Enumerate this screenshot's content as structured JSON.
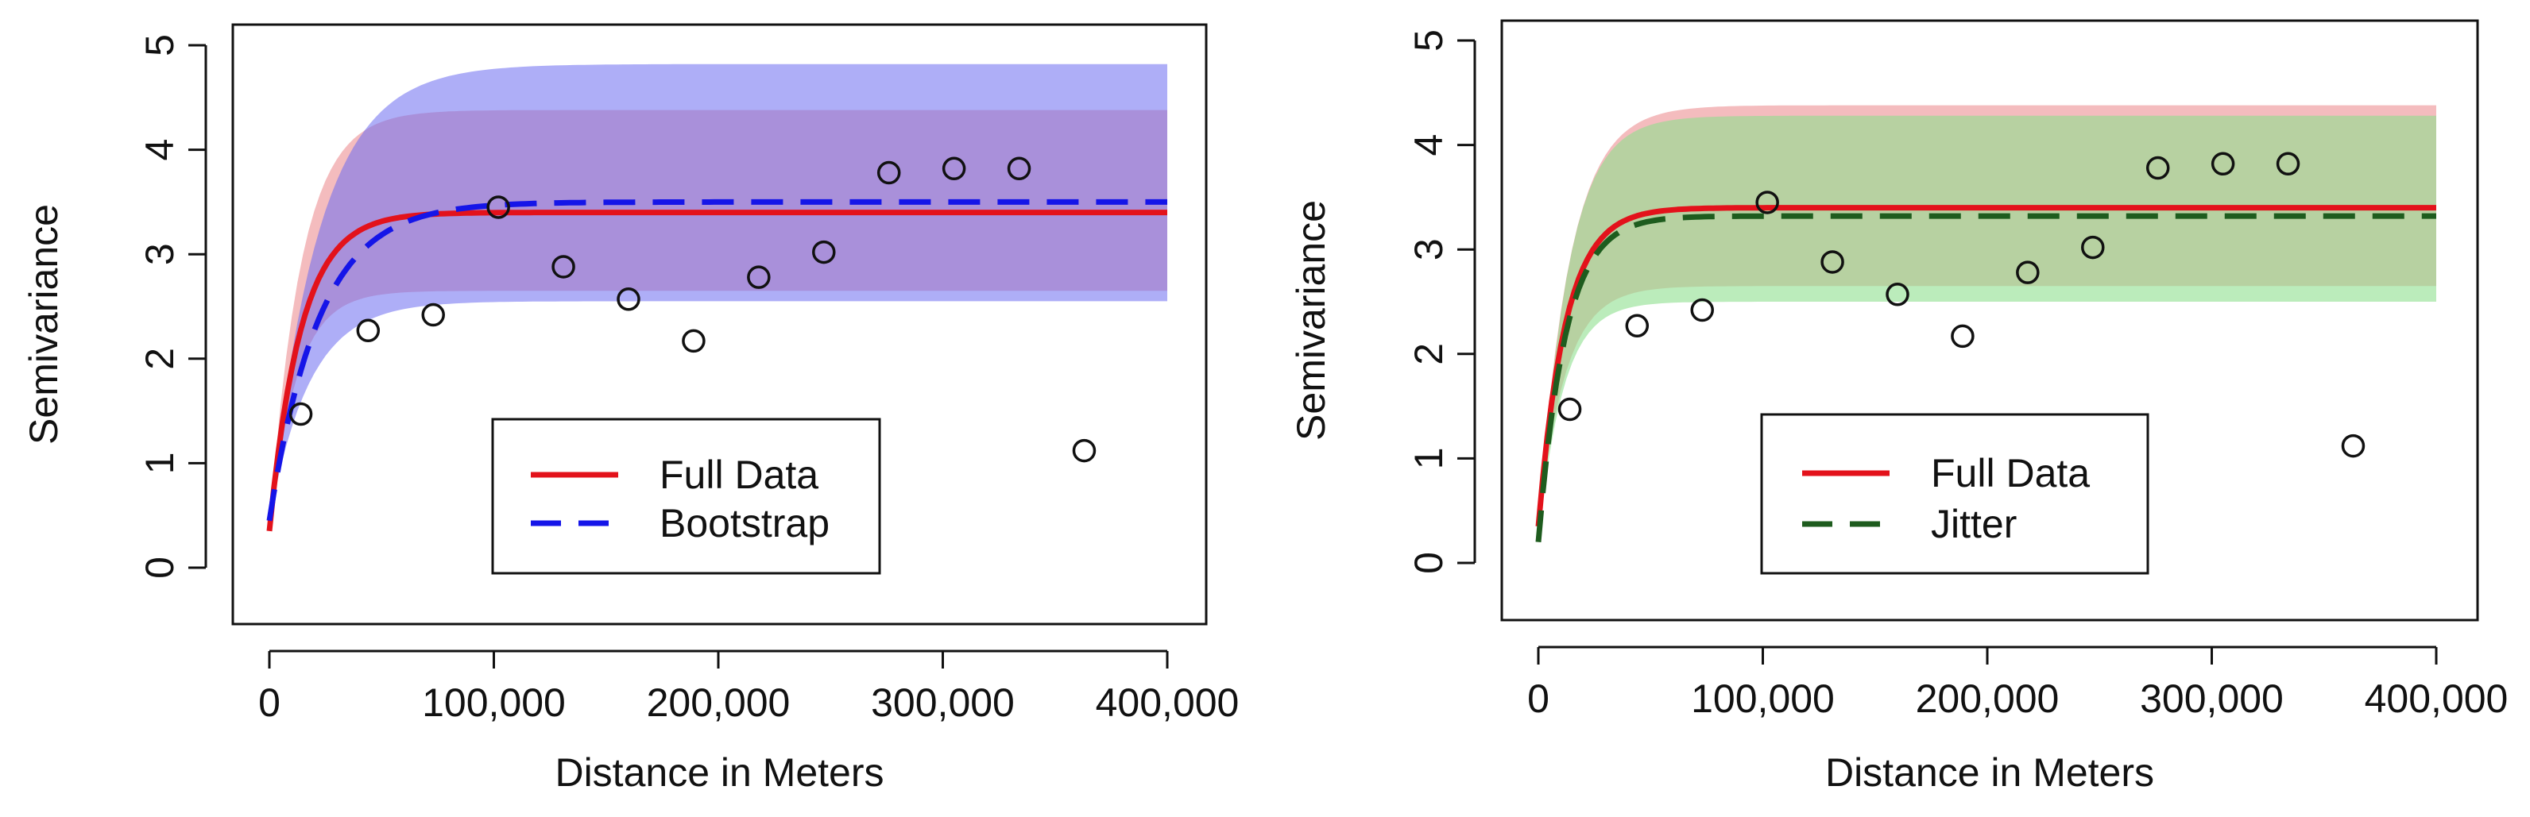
{
  "chart_data": [
    {
      "type": "line",
      "title": "",
      "xlabel": "Distance in Meters",
      "ylabel": "Semivariance",
      "xlim": [
        0,
        400000
      ],
      "ylim": [
        0,
        5
      ],
      "x_ticks": [
        0,
        100000,
        200000,
        300000,
        400000
      ],
      "x_tick_labels": [
        "0",
        "100,000",
        "200,000",
        "300,000",
        "400,000"
      ],
      "y_ticks": [
        0,
        1,
        2,
        3,
        4,
        5
      ],
      "y_tick_labels": [
        "0",
        "1",
        "2",
        "3",
        "4",
        "5"
      ],
      "points": {
        "x": [
          14000,
          44000,
          73000,
          102000,
          131000,
          160000,
          189000,
          218000,
          247000,
          276000,
          305000,
          334000,
          363000
        ],
        "y": [
          1.47,
          2.27,
          2.42,
          3.45,
          2.88,
          2.57,
          2.17,
          2.78,
          3.02,
          3.78,
          3.82,
          3.82,
          1.12
        ]
      },
      "series": [
        {
          "name": "Full Data",
          "color": "#e3121b",
          "style": "solid",
          "model": "exponential",
          "nugget": 0.35,
          "sill": 3.4,
          "range": 14000
        },
        {
          "name": "Bootstrap",
          "color": "#1515e8",
          "style": "dashed",
          "model": "exponential",
          "nugget": 0.45,
          "sill": 3.5,
          "range": 22000
        }
      ],
      "bands": [
        {
          "name": "Full Data band",
          "color": "#f0a0a3",
          "opacity": 0.7,
          "lower": {
            "nugget": 0.35,
            "sill": 2.65,
            "range": 12000
          },
          "upper": {
            "nugget": 0.35,
            "sill": 4.38,
            "range": 14000
          }
        },
        {
          "name": "Bootstrap band",
          "color": "#6b6bf0",
          "opacity": 0.55,
          "lower": {
            "nugget": 0.45,
            "sill": 2.55,
            "range": 18000
          },
          "upper": {
            "nugget": 0.45,
            "sill": 4.82,
            "range": 22000
          }
        }
      ],
      "legend": {
        "position": "bottom-center",
        "entries": [
          "Full Data",
          "Bootstrap"
        ]
      }
    },
    {
      "type": "line",
      "title": "",
      "xlabel": "Distance in Meters",
      "ylabel": "Semivariance",
      "xlim": [
        0,
        400000
      ],
      "ylim": [
        0,
        5
      ],
      "x_ticks": [
        0,
        100000,
        200000,
        300000,
        400000
      ],
      "x_tick_labels": [
        "0",
        "100,000",
        "200,000",
        "300,000",
        "400,000"
      ],
      "y_ticks": [
        0,
        1,
        2,
        3,
        4,
        5
      ],
      "y_tick_labels": [
        "0",
        "1",
        "2",
        "3",
        "4",
        "5"
      ],
      "points": {
        "x": [
          14000,
          44000,
          73000,
          102000,
          131000,
          160000,
          189000,
          218000,
          247000,
          276000,
          305000,
          334000,
          363000
        ],
        "y": [
          1.47,
          2.27,
          2.42,
          3.45,
          2.88,
          2.57,
          2.17,
          2.78,
          3.02,
          3.78,
          3.82,
          3.82,
          1.12
        ]
      },
      "series": [
        {
          "name": "Full Data",
          "color": "#e3121b",
          "style": "solid",
          "model": "exponential",
          "nugget": 0.35,
          "sill": 3.4,
          "range": 12000
        },
        {
          "name": "Jitter",
          "color": "#1e5c1e",
          "style": "dashed",
          "model": "exponential",
          "nugget": 0.2,
          "sill": 3.32,
          "range": 12000
        }
      ],
      "bands": [
        {
          "name": "Full Data band",
          "color": "#f0a0a3",
          "opacity": 0.7,
          "lower": {
            "nugget": 0.35,
            "sill": 2.65,
            "range": 12000
          },
          "upper": {
            "nugget": 0.35,
            "sill": 4.38,
            "range": 14000
          }
        },
        {
          "name": "Jitter band",
          "color": "#8ee08e",
          "opacity": 0.6,
          "lower": {
            "nugget": 0.2,
            "sill": 2.5,
            "range": 11000
          },
          "upper": {
            "nugget": 0.2,
            "sill": 4.28,
            "range": 13000
          }
        }
      ],
      "legend": {
        "position": "bottom-center",
        "entries": [
          "Full Data",
          "Jitter"
        ]
      }
    }
  ]
}
